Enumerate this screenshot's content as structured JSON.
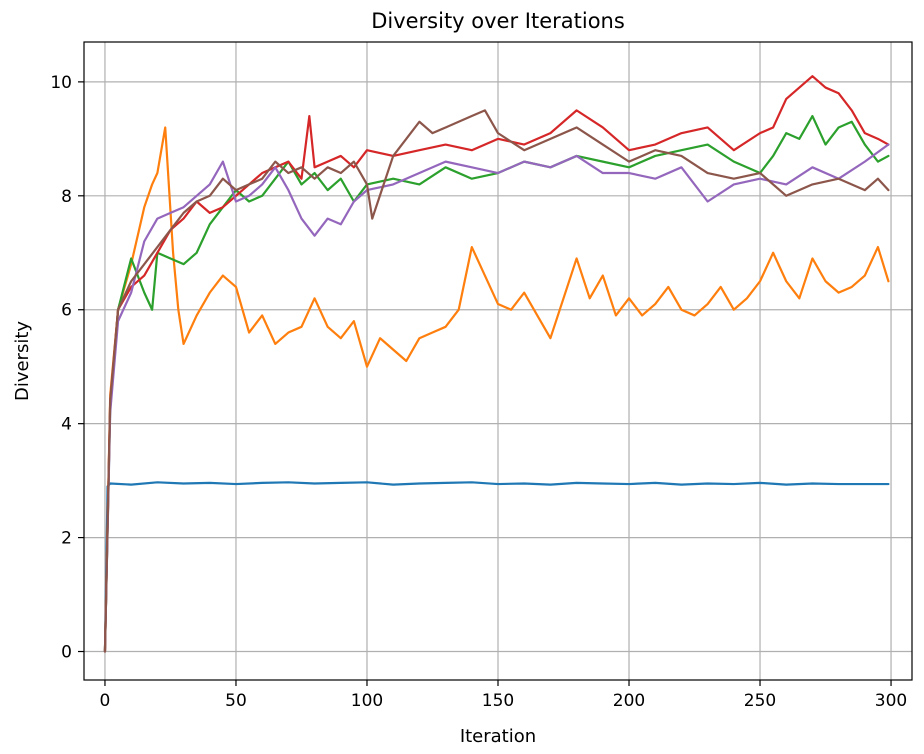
{
  "chart_data": {
    "type": "line",
    "title": "Diversity over Iterations",
    "xlabel": "Iteration",
    "ylabel": "Diversity",
    "xlim": [
      -8,
      308
    ],
    "ylim": [
      -0.5,
      10.7
    ],
    "xticks": [
      0,
      50,
      100,
      150,
      200,
      250,
      300
    ],
    "yticks": [
      0,
      2,
      4,
      6,
      8,
      10
    ],
    "grid": true,
    "series": [
      {
        "color": "#1f77b4",
        "x": [
          0,
          1,
          2,
          10,
          20,
          30,
          40,
          50,
          60,
          70,
          80,
          90,
          100,
          110,
          120,
          130,
          140,
          150,
          160,
          170,
          180,
          190,
          200,
          210,
          220,
          230,
          240,
          250,
          260,
          270,
          280,
          290,
          299
        ],
        "y": [
          0,
          2.9,
          2.95,
          2.93,
          2.97,
          2.95,
          2.96,
          2.94,
          2.96,
          2.97,
          2.95,
          2.96,
          2.97,
          2.93,
          2.95,
          2.96,
          2.97,
          2.94,
          2.95,
          2.93,
          2.96,
          2.95,
          2.94,
          2.96,
          2.93,
          2.95,
          2.94,
          2.96,
          2.93,
          2.95,
          2.94,
          2.94,
          2.94
        ]
      },
      {
        "color": "#ff7f0e",
        "x": [
          0,
          2,
          5,
          10,
          15,
          18,
          20,
          23,
          26,
          28,
          30,
          35,
          40,
          45,
          50,
          55,
          60,
          65,
          70,
          75,
          80,
          85,
          90,
          95,
          100,
          105,
          110,
          115,
          120,
          125,
          130,
          135,
          140,
          145,
          150,
          155,
          160,
          165,
          170,
          175,
          180,
          185,
          190,
          195,
          200,
          205,
          210,
          215,
          220,
          225,
          230,
          235,
          240,
          245,
          250,
          255,
          260,
          265,
          270,
          275,
          280,
          285,
          290,
          295,
          299
        ],
        "y": [
          0,
          4.5,
          6.0,
          6.8,
          7.8,
          8.2,
          8.4,
          9.2,
          7.0,
          6.0,
          5.4,
          5.9,
          6.3,
          6.6,
          6.4,
          5.6,
          5.9,
          5.4,
          5.6,
          5.7,
          6.2,
          5.7,
          5.5,
          5.8,
          5.0,
          5.5,
          5.3,
          5.1,
          5.5,
          5.6,
          5.7,
          6.0,
          7.1,
          6.6,
          6.1,
          6.0,
          6.3,
          5.9,
          5.5,
          6.2,
          6.9,
          6.2,
          6.6,
          5.9,
          6.2,
          5.9,
          6.1,
          6.4,
          6.0,
          5.9,
          6.1,
          6.4,
          6.0,
          6.2,
          6.5,
          7.0,
          6.5,
          6.2,
          6.9,
          6.5,
          6.3,
          6.4,
          6.6,
          7.1,
          6.5
        ]
      },
      {
        "color": "#2ca02c",
        "x": [
          0,
          2,
          5,
          10,
          15,
          18,
          20,
          25,
          30,
          35,
          40,
          45,
          50,
          55,
          60,
          65,
          70,
          75,
          80,
          85,
          90,
          95,
          100,
          110,
          120,
          130,
          140,
          150,
          160,
          170,
          180,
          190,
          200,
          210,
          220,
          230,
          240,
          250,
          255,
          260,
          265,
          270,
          275,
          280,
          285,
          290,
          295,
          299
        ],
        "y": [
          0,
          4.3,
          6.0,
          6.9,
          6.3,
          6.0,
          7.0,
          6.9,
          6.8,
          7.0,
          7.5,
          7.8,
          8.1,
          7.9,
          8.0,
          8.3,
          8.6,
          8.2,
          8.4,
          8.1,
          8.3,
          7.9,
          8.2,
          8.3,
          8.2,
          8.5,
          8.3,
          8.4,
          8.6,
          8.5,
          8.7,
          8.6,
          8.5,
          8.7,
          8.8,
          8.9,
          8.6,
          8.4,
          8.7,
          9.1,
          9.0,
          9.4,
          8.9,
          9.2,
          9.3,
          8.9,
          8.6,
          8.7
        ]
      },
      {
        "color": "#d62728",
        "x": [
          0,
          2,
          5,
          10,
          15,
          20,
          25,
          30,
          35,
          40,
          45,
          50,
          55,
          60,
          65,
          70,
          75,
          78,
          80,
          85,
          90,
          95,
          100,
          110,
          120,
          130,
          140,
          150,
          160,
          170,
          180,
          190,
          200,
          210,
          220,
          230,
          240,
          250,
          255,
          260,
          265,
          270,
          275,
          280,
          285,
          290,
          295,
          299
        ],
        "y": [
          0,
          4.4,
          6.0,
          6.4,
          6.6,
          7.0,
          7.4,
          7.6,
          7.9,
          7.7,
          7.8,
          8.0,
          8.2,
          8.4,
          8.5,
          8.6,
          8.3,
          9.4,
          8.5,
          8.6,
          8.7,
          8.5,
          8.8,
          8.7,
          8.8,
          8.9,
          8.8,
          9.0,
          8.9,
          9.1,
          9.5,
          9.2,
          8.8,
          8.9,
          9.1,
          9.2,
          8.8,
          9.1,
          9.2,
          9.7,
          9.9,
          10.1,
          9.9,
          9.8,
          9.5,
          9.1,
          9.0,
          8.9
        ]
      },
      {
        "color": "#9467bd",
        "x": [
          0,
          2,
          5,
          10,
          15,
          20,
          25,
          30,
          35,
          40,
          45,
          50,
          55,
          60,
          65,
          70,
          75,
          80,
          85,
          90,
          95,
          100,
          110,
          120,
          130,
          140,
          150,
          160,
          170,
          180,
          190,
          200,
          210,
          220,
          230,
          240,
          250,
          260,
          270,
          280,
          290,
          299
        ],
        "y": [
          0,
          4.2,
          5.8,
          6.3,
          7.2,
          7.6,
          7.7,
          7.8,
          8.0,
          8.2,
          8.6,
          7.9,
          8.0,
          8.2,
          8.5,
          8.1,
          7.6,
          7.3,
          7.6,
          7.5,
          7.9,
          8.1,
          8.2,
          8.4,
          8.6,
          8.5,
          8.4,
          8.6,
          8.5,
          8.7,
          8.4,
          8.4,
          8.3,
          8.5,
          7.9,
          8.2,
          8.3,
          8.2,
          8.5,
          8.3,
          8.6,
          8.9
        ]
      },
      {
        "color": "#8c564b",
        "x": [
          0,
          2,
          5,
          10,
          15,
          20,
          25,
          30,
          35,
          40,
          45,
          50,
          55,
          60,
          65,
          70,
          75,
          80,
          85,
          90,
          95,
          100,
          102,
          110,
          120,
          125,
          130,
          140,
          145,
          150,
          160,
          170,
          180,
          190,
          200,
          210,
          220,
          230,
          240,
          250,
          260,
          270,
          280,
          290,
          295,
          299
        ],
        "y": [
          0,
          4.4,
          6.0,
          6.5,
          6.8,
          7.1,
          7.4,
          7.7,
          7.9,
          8.0,
          8.3,
          8.1,
          8.2,
          8.3,
          8.6,
          8.4,
          8.5,
          8.3,
          8.5,
          8.4,
          8.6,
          8.2,
          7.6,
          8.7,
          9.3,
          9.1,
          9.2,
          9.4,
          9.5,
          9.1,
          8.8,
          9.0,
          9.2,
          8.9,
          8.6,
          8.8,
          8.7,
          8.4,
          8.3,
          8.4,
          8.0,
          8.2,
          8.3,
          8.1,
          8.3,
          8.1
        ]
      }
    ]
  }
}
